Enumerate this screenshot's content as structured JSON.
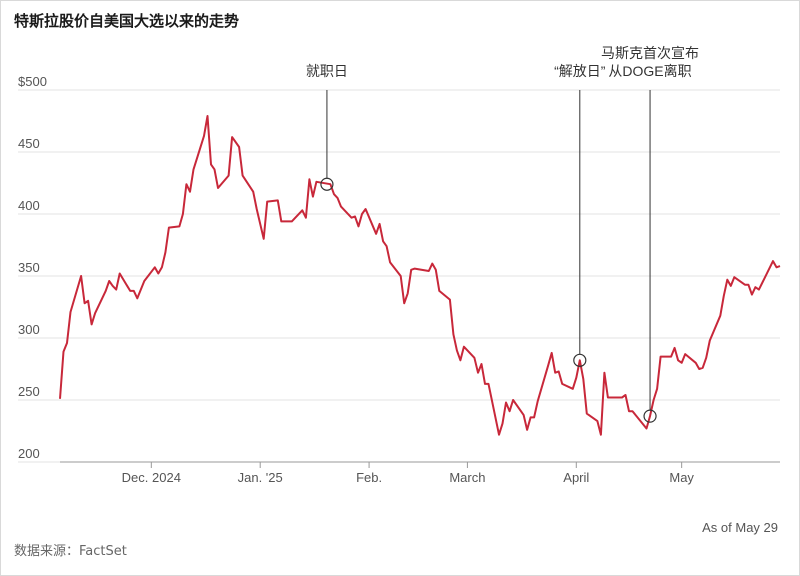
{
  "title": "特斯拉股价自美国大选以来的走势",
  "as_of": "As of May 29",
  "source": "数据来源：FactSet",
  "colors": {
    "line": "#c8283a",
    "grid": "#e3e3e3",
    "axis": "#999999",
    "text": "#555555"
  },
  "chart_data": {
    "type": "line",
    "title": "特斯拉股价自美国大选以来的走势",
    "xlabel": "",
    "ylabel": "",
    "ylim": [
      200,
      500
    ],
    "yticks": [
      {
        "value": 500,
        "label": "$500"
      },
      {
        "value": 450,
        "label": "450"
      },
      {
        "value": 400,
        "label": "400"
      },
      {
        "value": 350,
        "label": "350"
      },
      {
        "value": 300,
        "label": "300"
      },
      {
        "value": 250,
        "label": "250"
      },
      {
        "value": 200,
        "label": "200"
      }
    ],
    "xlim": [
      "2024-11-05",
      "2025-05-29"
    ],
    "xticks": [
      {
        "date": "2024-12-01",
        "label": "Dec. 2024"
      },
      {
        "date": "2025-01-01",
        "label": "Jan. '25"
      },
      {
        "date": "2025-02-01",
        "label": "Feb."
      },
      {
        "date": "2025-03-01",
        "label": "March"
      },
      {
        "date": "2025-04-01",
        "label": "April"
      },
      {
        "date": "2025-05-01",
        "label": "May"
      }
    ],
    "grid": true,
    "series": [
      {
        "name": "",
        "points": [
          [
            "2024-11-05",
            251
          ],
          [
            "2024-11-06",
            289
          ],
          [
            "2024-11-07",
            296
          ],
          [
            "2024-11-08",
            321
          ],
          [
            "2024-11-11",
            350
          ],
          [
            "2024-11-12",
            328
          ],
          [
            "2024-11-13",
            330
          ],
          [
            "2024-11-14",
            311
          ],
          [
            "2024-11-15",
            320
          ],
          [
            "2024-11-18",
            338
          ],
          [
            "2024-11-19",
            346
          ],
          [
            "2024-11-20",
            342
          ],
          [
            "2024-11-21",
            339
          ],
          [
            "2024-11-22",
            352
          ],
          [
            "2024-11-25",
            338
          ],
          [
            "2024-11-26",
            338
          ],
          [
            "2024-11-27",
            332
          ],
          [
            "2024-11-29",
            346
          ],
          [
            "2024-12-02",
            357
          ],
          [
            "2024-12-03",
            352
          ],
          [
            "2024-12-04",
            357
          ],
          [
            "2024-12-05",
            369
          ],
          [
            "2024-12-06",
            389
          ],
          [
            "2024-12-09",
            390
          ],
          [
            "2024-12-10",
            400
          ],
          [
            "2024-12-11",
            424
          ],
          [
            "2024-12-12",
            418
          ],
          [
            "2024-12-13",
            436
          ],
          [
            "2024-12-16",
            463
          ],
          [
            "2024-12-17",
            479
          ],
          [
            "2024-12-18",
            440
          ],
          [
            "2024-12-19",
            436
          ],
          [
            "2024-12-20",
            421
          ],
          [
            "2024-12-23",
            431
          ],
          [
            "2024-12-24",
            462
          ],
          [
            "2024-12-26",
            454
          ],
          [
            "2024-12-27",
            431
          ],
          [
            "2024-12-30",
            418
          ],
          [
            "2024-12-31",
            404
          ],
          [
            "2025-01-02",
            380
          ],
          [
            "2025-01-03",
            410
          ],
          [
            "2025-01-06",
            411
          ],
          [
            "2025-01-07",
            394
          ],
          [
            "2025-01-08",
            394
          ],
          [
            "2025-01-10",
            394
          ],
          [
            "2025-01-13",
            403
          ],
          [
            "2025-01-14",
            397
          ],
          [
            "2025-01-15",
            428
          ],
          [
            "2025-01-16",
            414
          ],
          [
            "2025-01-17",
            426
          ],
          [
            "2025-01-21",
            424
          ],
          [
            "2025-01-22",
            416
          ],
          [
            "2025-01-23",
            413
          ],
          [
            "2025-01-24",
            406
          ],
          [
            "2025-01-27",
            397
          ],
          [
            "2025-01-28",
            398
          ],
          [
            "2025-01-29",
            390
          ],
          [
            "2025-01-30",
            400
          ],
          [
            "2025-01-31",
            404
          ],
          [
            "2025-02-03",
            384
          ],
          [
            "2025-02-04",
            392
          ],
          [
            "2025-02-05",
            378
          ],
          [
            "2025-02-06",
            374
          ],
          [
            "2025-02-07",
            361
          ],
          [
            "2025-02-10",
            350
          ],
          [
            "2025-02-11",
            328
          ],
          [
            "2025-02-12",
            336
          ],
          [
            "2025-02-13",
            355
          ],
          [
            "2025-02-14",
            356
          ],
          [
            "2025-02-18",
            354
          ],
          [
            "2025-02-19",
            360
          ],
          [
            "2025-02-20",
            355
          ],
          [
            "2025-02-21",
            338
          ],
          [
            "2025-02-24",
            331
          ],
          [
            "2025-02-25",
            303
          ],
          [
            "2025-02-26",
            290
          ],
          [
            "2025-02-27",
            282
          ],
          [
            "2025-02-28",
            293
          ],
          [
            "2025-03-03",
            284
          ],
          [
            "2025-03-04",
            272
          ],
          [
            "2025-03-05",
            279
          ],
          [
            "2025-03-06",
            263
          ],
          [
            "2025-03-07",
            263
          ],
          [
            "2025-03-10",
            222
          ],
          [
            "2025-03-11",
            231
          ],
          [
            "2025-03-12",
            248
          ],
          [
            "2025-03-13",
            241
          ],
          [
            "2025-03-14",
            250
          ],
          [
            "2025-03-17",
            238
          ],
          [
            "2025-03-18",
            226
          ],
          [
            "2025-03-19",
            236
          ],
          [
            "2025-03-20",
            236
          ],
          [
            "2025-03-21",
            249
          ],
          [
            "2025-03-24",
            278
          ],
          [
            "2025-03-25",
            288
          ],
          [
            "2025-03-26",
            272
          ],
          [
            "2025-03-27",
            273
          ],
          [
            "2025-03-28",
            263
          ],
          [
            "2025-03-31",
            259
          ],
          [
            "2025-04-01",
            268
          ],
          [
            "2025-04-02",
            282
          ],
          [
            "2025-04-03",
            267
          ],
          [
            "2025-04-04",
            239
          ],
          [
            "2025-04-07",
            233
          ],
          [
            "2025-04-08",
            222
          ],
          [
            "2025-04-09",
            272
          ],
          [
            "2025-04-10",
            252
          ],
          [
            "2025-04-11",
            252
          ],
          [
            "2025-04-14",
            252
          ],
          [
            "2025-04-15",
            254
          ],
          [
            "2025-04-16",
            241
          ],
          [
            "2025-04-17",
            241
          ],
          [
            "2025-04-21",
            227
          ],
          [
            "2025-04-22",
            237
          ],
          [
            "2025-04-23",
            250
          ],
          [
            "2025-04-24",
            259
          ],
          [
            "2025-04-25",
            285
          ],
          [
            "2025-04-28",
            285
          ],
          [
            "2025-04-29",
            292
          ],
          [
            "2025-04-30",
            282
          ],
          [
            "2025-05-01",
            280
          ],
          [
            "2025-05-02",
            287
          ],
          [
            "2025-05-05",
            280
          ],
          [
            "2025-05-06",
            275
          ],
          [
            "2025-05-07",
            276
          ],
          [
            "2025-05-08",
            284
          ],
          [
            "2025-05-09",
            298
          ],
          [
            "2025-05-12",
            318
          ],
          [
            "2025-05-13",
            334
          ],
          [
            "2025-05-14",
            347
          ],
          [
            "2025-05-15",
            342
          ],
          [
            "2025-05-16",
            349
          ],
          [
            "2025-05-19",
            343
          ],
          [
            "2025-05-20",
            343
          ],
          [
            "2025-05-21",
            335
          ],
          [
            "2025-05-22",
            341
          ],
          [
            "2025-05-23",
            339
          ],
          [
            "2025-05-27",
            362
          ],
          [
            "2025-05-28",
            357
          ],
          [
            "2025-05-29",
            358
          ]
        ]
      }
    ],
    "annotations": [
      {
        "date": "2025-01-20",
        "value": 424,
        "lines": [
          "就职日"
        ]
      },
      {
        "date": "2025-04-02",
        "value": 282,
        "lines": [
          "“解放日”"
        ]
      },
      {
        "date": "2025-04-22",
        "value": 237,
        "lines": [
          "马斯克首次宣布",
          "从DOGE离职"
        ]
      }
    ]
  }
}
